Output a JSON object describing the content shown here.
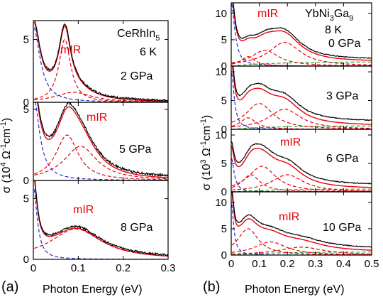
{
  "figure": {
    "panel_a_letter": "(a)",
    "panel_b_letter": "(b)",
    "xlabel": "Photon Energy (eV)",
    "ylabel_a_base": "σ (10",
    "ylabel_a_exp": "4",
    "ylabel_a_unit": " Ω",
    "ylabel_a_exp2": "-1",
    "ylabel_a_unit2": "cm",
    "ylabel_a_exp3": "-1",
    "ylabel_a_end": ")",
    "ylabel_b_base": "σ (10",
    "ylabel_b_exp": "3",
    "ylabel_b_unit": " Ω",
    "ylabel_b_exp2": "-1",
    "ylabel_b_unit2": "cm",
    "ylabel_b_exp3": "-1",
    "ylabel_b_end": ")"
  },
  "chart_data": [
    {
      "type": "line",
      "panel": "a",
      "material_base": "CeRhIn",
      "material_sub": "5",
      "temperature": "6 K",
      "xlim": [
        0,
        0.3
      ],
      "xticks": [
        "0",
        "0.1",
        "0.2",
        "0.3"
      ],
      "yticks": [
        "0",
        "5"
      ],
      "colors": {
        "data": "#000000",
        "drude": "#1f2fd6",
        "lorentz": "#e8000b",
        "total": "#e8000b"
      },
      "subpanels": [
        {
          "pressure": "2 GPa",
          "ylim": [
            0,
            6.5
          ],
          "annotation": "mIR",
          "drude_amp": 6.0,
          "drude_scale": 0.018,
          "peaks": [
            {
              "x0": 0.07,
              "w": 0.016,
              "h": 5.0
            },
            {
              "x0": 0.09,
              "w": 0.05,
              "h": 0.8
            }
          ],
          "bg": 0.15
        },
        {
          "pressure": "5 GPa",
          "ylim": [
            0,
            5.5
          ],
          "annotation": "mIR",
          "drude_amp": 6.0,
          "drude_scale": 0.016,
          "peaks": [
            {
              "x0": 0.075,
              "w": 0.03,
              "h": 3.2
            },
            {
              "x0": 0.105,
              "w": 0.045,
              "h": 2.4
            }
          ],
          "bg": 0.3
        },
        {
          "pressure": "8 GPa",
          "ylim": [
            0,
            6.5
          ],
          "annotation": "mIR",
          "drude_amp": 6.0,
          "drude_scale": 0.01,
          "peaks": [
            {
              "x0": 0.095,
              "w": 0.07,
              "h": 2.5
            }
          ],
          "bg": 0.2
        }
      ]
    },
    {
      "type": "line",
      "panel": "b",
      "material_base": "YbNi",
      "material_sub1": "3",
      "material_mid": "Ga",
      "material_sub2": "9",
      "temperature": "8 K",
      "xlim": [
        0,
        0.5
      ],
      "xticks": [
        "0",
        "0.1",
        "0.2",
        "0.3",
        "0.4",
        "0.5"
      ],
      "yticks": [
        "0",
        "5",
        "10"
      ],
      "colors": {
        "data": "#000000",
        "drude": "#1f2fd6",
        "lorentz": "#e8000b",
        "total": "#e8000b",
        "green": "#2aa02a"
      },
      "subpanels": [
        {
          "pressure": "0 GPa",
          "ylim": [
            0,
            12
          ],
          "annotation": "mIR",
          "drude_amp": 12.0,
          "drude_scale": 0.015,
          "peaks": [
            {
              "x0": 0.06,
              "w": 0.03,
              "h": 1.8
            },
            {
              "x0": 0.12,
              "w": 0.06,
              "h": 3.0
            },
            {
              "x0": 0.19,
              "w": 0.07,
              "h": 4.5
            }
          ],
          "green": 0.8,
          "bg": 0.8
        },
        {
          "pressure": "3 GPa",
          "ylim": [
            0,
            11
          ],
          "annotation": "",
          "drude_amp": 10.0,
          "drude_scale": 0.012,
          "peaks": [
            {
              "x0": 0.06,
              "w": 0.035,
              "h": 2.0
            },
            {
              "x0": 0.1,
              "w": 0.06,
              "h": 4.5
            },
            {
              "x0": 0.19,
              "w": 0.07,
              "h": 3.5
            }
          ],
          "green": 0.6,
          "bg": 1.4
        },
        {
          "pressure": "6 GPa",
          "ylim": [
            0,
            11
          ],
          "annotation": "mIR",
          "drude_amp": 6.0,
          "drude_scale": 0.012,
          "peaks": [
            {
              "x0": 0.07,
              "w": 0.04,
              "h": 3.0
            },
            {
              "x0": 0.11,
              "w": 0.06,
              "h": 4.5
            },
            {
              "x0": 0.2,
              "w": 0.07,
              "h": 3.0
            }
          ],
          "green": 0.5,
          "bg": 1.3
        },
        {
          "pressure": "10 GPa",
          "ylim": [
            0,
            12
          ],
          "annotation": "mIR",
          "drude_amp": 10.0,
          "drude_scale": 0.01,
          "peaks": [
            {
              "x0": 0.06,
              "w": 0.045,
              "h": 5.0
            },
            {
              "x0": 0.14,
              "w": 0.07,
              "h": 2.5
            },
            {
              "x0": 0.25,
              "w": 0.1,
              "h": 1.5
            }
          ],
          "green": 0.6,
          "bg": 1.2
        }
      ]
    }
  ]
}
